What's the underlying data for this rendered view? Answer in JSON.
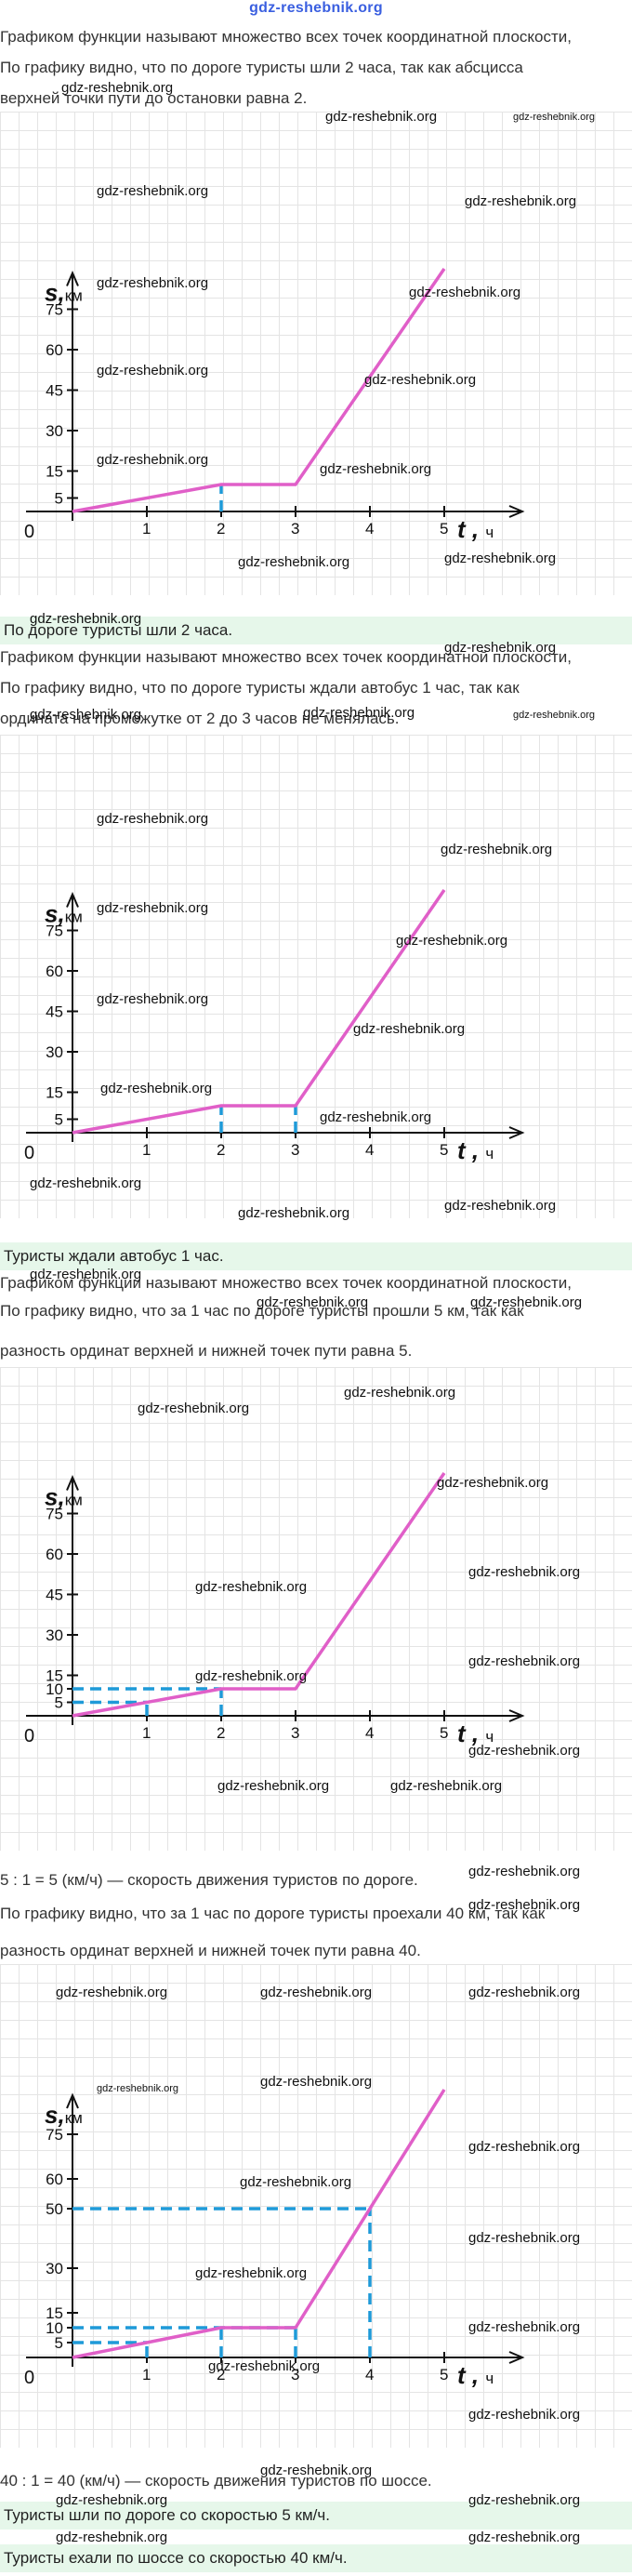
{
  "header_link": "gdz-reshebnik.org",
  "watermark": "gdz-reshebnik.org",
  "sections": [
    {
      "lines": [
        "Графиком функции называют множество всех точек координатной плоскости,",
        "По графику видно, что по дороге туристы шли 2 часа, так как абсцисса",
        "верхней точки пути до остановки равна 2."
      ],
      "answer": "По дороге туристы шли 2 часа."
    },
    {
      "lines": [
        "Графиком функции называют множество всех точек координатной плоскости,",
        "По графику видно, что по дороге туристы ждали автобус 1 час, так как",
        "ордината на промежутке от 2 до 3 часов не менялась."
      ],
      "answer": "Туристы ждали автобус 1 час."
    },
    {
      "lines": [
        "Графиком функции называют множество всех точек координатной плоскости,",
        "По графику видно, что за 1 час по дороге туристы прошли 5 км, так как",
        "разность ординат верхней и нижней точек пути равна 5."
      ],
      "answer": ""
    },
    {
      "lines": [
        "5 : 1 = 5 (км/ч) — скорость движения туристов по дороге.",
        "По графику видно, что за 1 час по дороге туристы проехали 40 км, так как",
        "разность ординат верхней и нижней точек пути равна 40."
      ],
      "answer": ""
    }
  ],
  "final_lines": [
    "40 : 1 = 40 (км/ч) — скорость движения туристов по шоссе."
  ],
  "final_answers": [
    "Туристы шли по дороге со скоростью 5 км/ч.",
    "Туристы ехали по шоссе со скоростью 40 км/ч."
  ],
  "chart_data": [
    {
      "type": "line",
      "title": "",
      "xlabel": "t , ч",
      "ylabel": "s , км",
      "x_ticks": [
        "1",
        "2",
        "3",
        "4",
        "5"
      ],
      "y_ticks": [
        "5",
        "15",
        "30",
        "45",
        "60",
        "75"
      ],
      "origin_label": "0",
      "xlim": [
        0,
        5.8
      ],
      "ylim": [
        0,
        85
      ],
      "series": [
        {
          "x": [
            0,
            2,
            3,
            5
          ],
          "y": [
            0,
            10,
            10,
            90
          ],
          "color": "#e05fc8"
        }
      ],
      "guides": [
        {
          "from": [
            2,
            0
          ],
          "to": [
            2,
            10
          ]
        }
      ]
    },
    {
      "type": "line",
      "title": "",
      "xlabel": "t , ч",
      "ylabel": "s , км",
      "x_ticks": [
        "1",
        "2",
        "3",
        "4",
        "5"
      ],
      "y_ticks": [
        "5",
        "15",
        "30",
        "45",
        "60",
        "75"
      ],
      "origin_label": "0",
      "xlim": [
        0,
        5.8
      ],
      "ylim": [
        0,
        85
      ],
      "series": [
        {
          "x": [
            0,
            2,
            3,
            5
          ],
          "y": [
            0,
            10,
            10,
            90
          ],
          "color": "#e05fc8"
        }
      ],
      "guides": [
        {
          "from": [
            2,
            0
          ],
          "to": [
            2,
            10
          ]
        },
        {
          "from": [
            3,
            0
          ],
          "to": [
            3,
            10
          ]
        }
      ]
    },
    {
      "type": "line",
      "title": "",
      "xlabel": "t , ч",
      "ylabel": "s , км",
      "x_ticks": [
        "1",
        "2",
        "3",
        "4",
        "5"
      ],
      "y_ticks": [
        "5",
        "10",
        "15",
        "30",
        "45",
        "60",
        "75"
      ],
      "origin_label": "0",
      "xlim": [
        0,
        5.8
      ],
      "ylim": [
        0,
        85
      ],
      "series": [
        {
          "x": [
            0,
            2,
            3,
            5
          ],
          "y": [
            0,
            10,
            10,
            90
          ],
          "color": "#e05fc8"
        }
      ],
      "guides": [
        {
          "from": [
            0,
            10
          ],
          "to": [
            2,
            10
          ]
        },
        {
          "from": [
            2,
            0
          ],
          "to": [
            2,
            10
          ]
        },
        {
          "from": [
            0,
            5
          ],
          "to": [
            1,
            5
          ]
        },
        {
          "from": [
            1,
            0
          ],
          "to": [
            1,
            5
          ]
        }
      ]
    },
    {
      "type": "line",
      "title": "",
      "xlabel": "t , ч",
      "ylabel": "s , км",
      "x_ticks": [
        "1",
        "2",
        "3",
        "4",
        "5"
      ],
      "y_ticks": [
        "5",
        "10",
        "15",
        "30",
        "50",
        "60",
        "75"
      ],
      "origin_label": "0",
      "xlim": [
        0,
        5.8
      ],
      "ylim": [
        0,
        85
      ],
      "series": [
        {
          "x": [
            0,
            2,
            3,
            5
          ],
          "y": [
            0,
            10,
            10,
            90
          ],
          "color": "#e05fc8"
        }
      ],
      "guides": [
        {
          "from": [
            0,
            10
          ],
          "to": [
            3,
            10
          ]
        },
        {
          "from": [
            2,
            0
          ],
          "to": [
            2,
            10
          ]
        },
        {
          "from": [
            3,
            0
          ],
          "to": [
            3,
            10
          ]
        },
        {
          "from": [
            0,
            5
          ],
          "to": [
            1,
            5
          ]
        },
        {
          "from": [
            1,
            0
          ],
          "to": [
            1,
            5
          ]
        },
        {
          "from": [
            0,
            50
          ],
          "to": [
            4,
            50
          ]
        },
        {
          "from": [
            4,
            0
          ],
          "to": [
            4,
            50
          ]
        }
      ]
    }
  ]
}
